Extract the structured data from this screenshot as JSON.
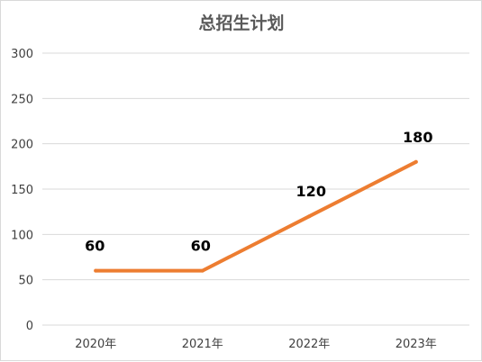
{
  "chart_data": {
    "type": "line",
    "title": "总招生计划",
    "xlabel": "",
    "ylabel": "",
    "categories": [
      "2020年",
      "2021年",
      "2022年",
      "2023年"
    ],
    "series": [
      {
        "values": [
          60,
          60,
          120,
          180
        ],
        "color": "#ED7D31"
      }
    ],
    "ylim": [
      0,
      300
    ],
    "yticks": [
      0,
      50,
      100,
      150,
      200,
      250,
      300
    ],
    "grid": true,
    "data_labels": [
      "60",
      "60",
      "120",
      "180"
    ],
    "legend": "none"
  }
}
